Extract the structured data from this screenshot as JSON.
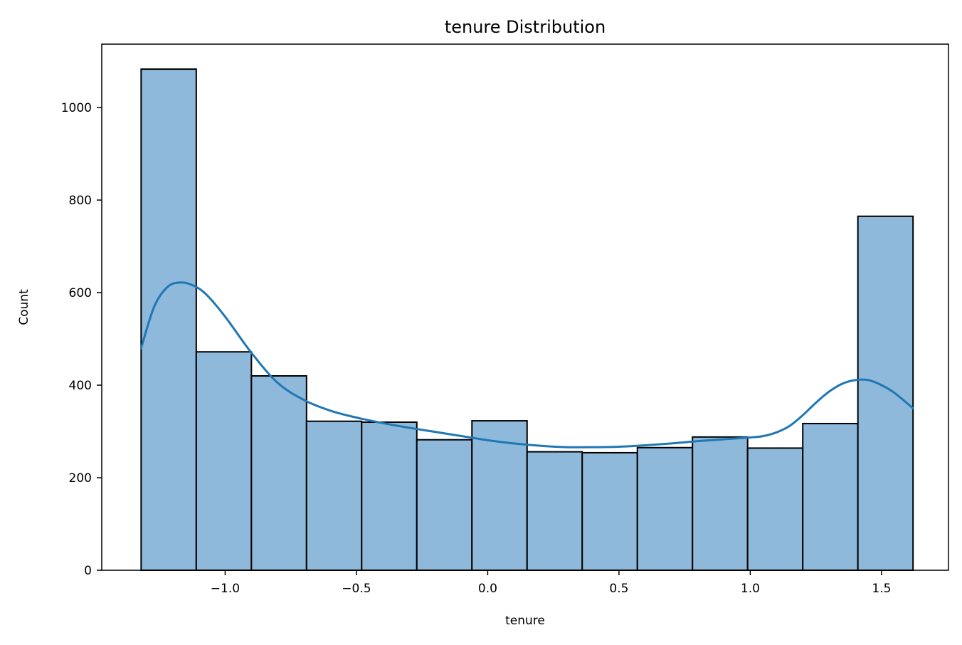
{
  "chart_data": {
    "type": "bar",
    "title": "tenure Distribution",
    "xlabel": "tenure",
    "ylabel": "Count",
    "xlim": [
      -1.47,
      1.755
    ],
    "ylim": [
      0,
      1137
    ],
    "xticks": [
      -1.0,
      -0.5,
      0.0,
      0.5,
      1.0,
      1.5
    ],
    "xtick_labels": [
      "−1.0",
      "−0.5",
      "0.0",
      "0.5",
      "1.0",
      "1.5"
    ],
    "yticks": [
      0,
      200,
      400,
      600,
      800,
      1000
    ],
    "ytick_labels": [
      "0",
      "200",
      "400",
      "600",
      "800",
      "1000"
    ],
    "grid": false,
    "bins": [
      {
        "x0": -1.32,
        "x1": -1.11,
        "count": 1083
      },
      {
        "x0": -1.11,
        "x1": -0.9,
        "count": 472
      },
      {
        "x0": -0.9,
        "x1": -0.69,
        "count": 420
      },
      {
        "x0": -0.69,
        "x1": -0.48,
        "count": 322
      },
      {
        "x0": -0.48,
        "x1": -0.27,
        "count": 320
      },
      {
        "x0": -0.27,
        "x1": -0.06,
        "count": 282
      },
      {
        "x0": -0.06,
        "x1": 0.15,
        "count": 323
      },
      {
        "x0": 0.15,
        "x1": 0.36,
        "count": 256
      },
      {
        "x0": 0.36,
        "x1": 0.57,
        "count": 254
      },
      {
        "x0": 0.57,
        "x1": 0.78,
        "count": 265
      },
      {
        "x0": 0.78,
        "x1": 0.99,
        "count": 288
      },
      {
        "x0": 0.99,
        "x1": 1.2,
        "count": 264
      },
      {
        "x0": 1.2,
        "x1": 1.41,
        "count": 317
      },
      {
        "x0": 1.41,
        "x1": 1.62,
        "count": 765
      }
    ],
    "kde": {
      "x": [
        -1.32,
        -1.27,
        -1.22,
        -1.17,
        -1.12,
        -1.07,
        -1.0,
        -0.9,
        -0.8,
        -0.7,
        -0.6,
        -0.5,
        -0.4,
        -0.3,
        -0.2,
        -0.1,
        0.0,
        0.1,
        0.2,
        0.3,
        0.4,
        0.5,
        0.6,
        0.7,
        0.8,
        0.9,
        1.0,
        1.05,
        1.1,
        1.15,
        1.2,
        1.25,
        1.3,
        1.35,
        1.4,
        1.45,
        1.5,
        1.55,
        1.62
      ],
      "y": [
        480,
        570,
        612,
        622,
        615,
        595,
        548,
        470,
        405,
        368,
        345,
        330,
        318,
        308,
        299,
        290,
        281,
        274,
        269,
        266,
        266,
        267,
        270,
        274,
        279,
        283,
        287,
        290,
        298,
        312,
        335,
        362,
        386,
        403,
        411,
        411,
        400,
        383,
        350
      ],
      "color": "#1f77b4"
    },
    "bar_fill": "#8eb9da",
    "bar_edge": "#000000"
  }
}
